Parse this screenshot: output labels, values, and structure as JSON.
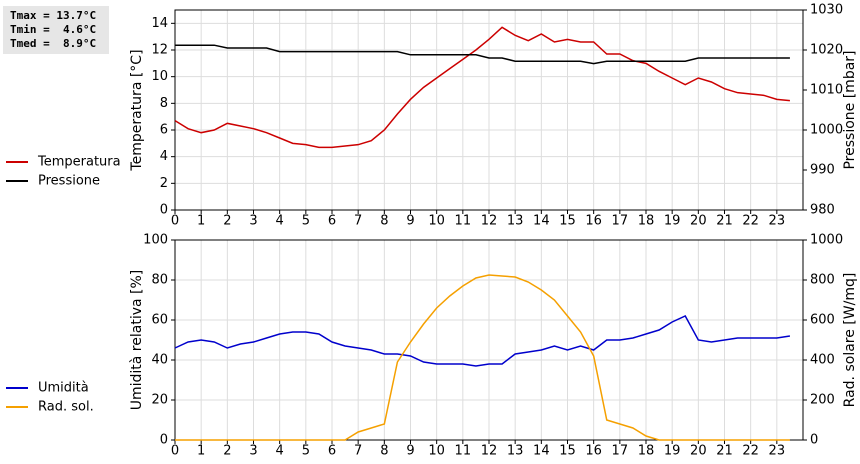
{
  "stats": [
    "Tmax = 13.7°C",
    "Tmin =  4.6°C",
    "Tmed =  8.9°C"
  ],
  "chart_data": [
    {
      "type": "line",
      "y_label": "Temperatura [°C]",
      "y2_label": "Pressione [mbar]",
      "xlim": [
        0,
        24
      ],
      "xticks": [
        0,
        1,
        2,
        3,
        4,
        5,
        6,
        7,
        8,
        9,
        10,
        11,
        12,
        13,
        14,
        15,
        16,
        17,
        18,
        19,
        20,
        21,
        22,
        23
      ],
      "ylim": [
        0,
        15
      ],
      "yticks": [
        0,
        2,
        4,
        6,
        8,
        10,
        12,
        14
      ],
      "y2lim": [
        980,
        1030
      ],
      "y2ticks": [
        980,
        990,
        1000,
        1010,
        1020,
        1030
      ],
      "grid": true,
      "x": [
        0,
        0.5,
        1,
        1.5,
        2,
        2.5,
        3,
        3.5,
        4,
        4.5,
        5,
        5.5,
        6,
        6.5,
        7,
        7.5,
        8,
        8.5,
        9,
        9.5,
        10,
        10.5,
        11,
        11.5,
        12,
        12.5,
        13,
        13.5,
        14,
        14.5,
        15,
        15.5,
        16,
        16.5,
        17,
        17.5,
        18,
        18.5,
        19,
        19.5,
        20,
        20.5,
        21,
        21.5,
        22,
        22.5,
        23,
        23.5
      ],
      "series": [
        {
          "name": "Temperatura",
          "color": "#cc0000",
          "values": [
            6.7,
            6.1,
            5.8,
            6.0,
            6.5,
            6.3,
            6.1,
            5.8,
            5.4,
            5.0,
            4.9,
            4.7,
            4.7,
            4.8,
            4.9,
            5.2,
            6.0,
            7.2,
            8.3,
            9.2,
            9.9,
            10.6,
            11.3,
            12.0,
            12.8,
            13.7,
            13.1,
            12.7,
            13.2,
            12.6,
            12.8,
            12.6,
            12.6,
            11.7,
            11.7,
            11.2,
            11.0,
            10.4,
            9.9,
            9.4,
            9.9,
            9.6,
            9.1,
            8.8,
            8.7,
            8.6,
            8.3,
            8.2
          ]
        },
        {
          "name": "Pressione",
          "color": "#000000",
          "axis": "y2",
          "values": [
            1021.2,
            1021.2,
            1021.2,
            1021.2,
            1020.5,
            1020.5,
            1020.5,
            1020.5,
            1019.6,
            1019.6,
            1019.6,
            1019.6,
            1019.6,
            1019.6,
            1019.6,
            1019.6,
            1019.6,
            1019.6,
            1018.8,
            1018.8,
            1018.8,
            1018.8,
            1018.8,
            1018.8,
            1018.0,
            1018.0,
            1017.2,
            1017.2,
            1017.2,
            1017.2,
            1017.2,
            1017.2,
            1016.6,
            1017.2,
            1017.2,
            1017.2,
            1017.2,
            1017.2,
            1017.2,
            1017.2,
            1018.0,
            1018.0,
            1018.0,
            1018.0,
            1018.0,
            1018.0,
            1018.0,
            1018.0
          ]
        }
      ]
    },
    {
      "type": "line",
      "y_label": "Umidità relativa [%]",
      "y2_label": "Rad. solare [W/mq]",
      "xlim": [
        0,
        24
      ],
      "xticks": [
        0,
        1,
        2,
        3,
        4,
        5,
        6,
        7,
        8,
        9,
        10,
        11,
        12,
        13,
        14,
        15,
        16,
        17,
        18,
        19,
        20,
        21,
        22,
        23
      ],
      "ylim": [
        0,
        100
      ],
      "yticks": [
        0,
        20,
        40,
        60,
        80,
        100
      ],
      "y2lim": [
        0,
        1000
      ],
      "y2ticks": [
        0,
        200,
        400,
        600,
        800,
        1000
      ],
      "grid": true,
      "x": [
        0,
        0.5,
        1,
        1.5,
        2,
        2.5,
        3,
        3.5,
        4,
        4.5,
        5,
        5.5,
        6,
        6.5,
        7,
        7.5,
        8,
        8.5,
        9,
        9.5,
        10,
        10.5,
        11,
        11.5,
        12,
        12.5,
        13,
        13.5,
        14,
        14.5,
        15,
        15.5,
        16,
        16.5,
        17,
        17.5,
        18,
        18.5,
        19,
        19.5,
        20,
        20.5,
        21,
        21.5,
        22,
        22.5,
        23,
        23.5
      ],
      "series": [
        {
          "name": "Umidità",
          "color": "#0000cc",
          "values": [
            46,
            49,
            50,
            49,
            46,
            48,
            49,
            51,
            53,
            54,
            54,
            53,
            49,
            47,
            46,
            45,
            43,
            43,
            42,
            39,
            38,
            38,
            38,
            37,
            38,
            38,
            43,
            44,
            45,
            47,
            45,
            47,
            45,
            50,
            50,
            51,
            53,
            55,
            59,
            62,
            50,
            49,
            50,
            51,
            51,
            51,
            51,
            52
          ]
        },
        {
          "name": "Rad. sol.",
          "color": "#f5a000",
          "axis": "y2",
          "values": [
            0,
            0,
            0,
            0,
            0,
            0,
            0,
            0,
            0,
            0,
            0,
            0,
            0,
            0,
            40,
            60,
            80,
            390,
            490,
            580,
            660,
            720,
            770,
            810,
            825,
            820,
            815,
            790,
            750,
            700,
            620,
            540,
            420,
            100,
            80,
            60,
            20,
            0,
            0,
            0,
            0,
            0,
            0,
            0,
            0,
            0,
            0,
            0
          ]
        }
      ]
    }
  ]
}
